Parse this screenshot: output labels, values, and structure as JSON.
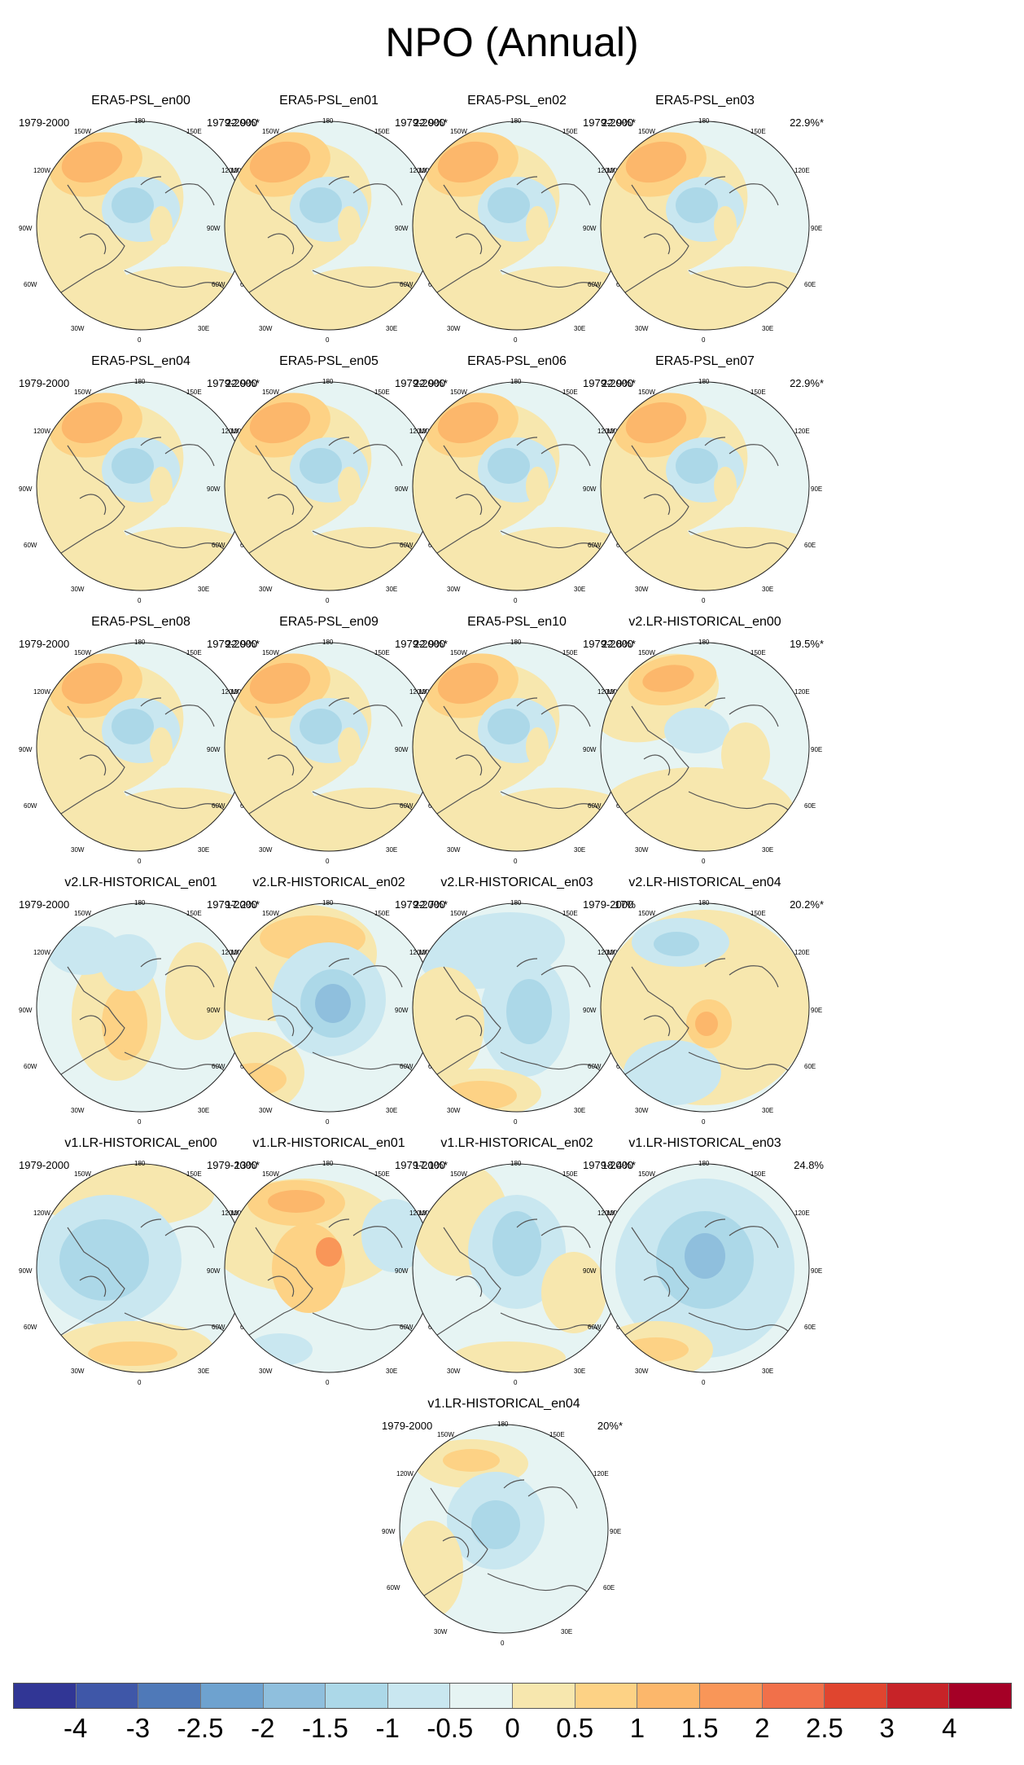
{
  "title": "NPO (Annual)",
  "panels": [
    {
      "name": "ERA5-PSL_en00",
      "period": "1979-2000",
      "pct": "22.9%*",
      "pattern": "era5"
    },
    {
      "name": "ERA5-PSL_en01",
      "period": "1979-2000",
      "pct": "22.9%*",
      "pattern": "era5"
    },
    {
      "name": "ERA5-PSL_en02",
      "period": "1979-2000",
      "pct": "22.9%*",
      "pattern": "era5"
    },
    {
      "name": "ERA5-PSL_en03",
      "period": "1979-2000",
      "pct": "22.9%*",
      "pattern": "era5"
    },
    {
      "name": "ERA5-PSL_en04",
      "period": "1979-2000",
      "pct": "22.9%*",
      "pattern": "era5"
    },
    {
      "name": "ERA5-PSL_en05",
      "period": "1979-2000",
      "pct": "22.9%*",
      "pattern": "era5"
    },
    {
      "name": "ERA5-PSL_en06",
      "period": "1979-2000",
      "pct": "22.9%*",
      "pattern": "era5"
    },
    {
      "name": "ERA5-PSL_en07",
      "period": "1979-2000",
      "pct": "22.9%*",
      "pattern": "era5"
    },
    {
      "name": "ERA5-PSL_en08",
      "period": "1979-2000",
      "pct": "22.9%*",
      "pattern": "era5"
    },
    {
      "name": "ERA5-PSL_en09",
      "period": "1979-2000",
      "pct": "22.9%*",
      "pattern": "era5"
    },
    {
      "name": "ERA5-PSL_en10",
      "period": "1979-2000",
      "pct": "22.8%*",
      "pattern": "era5"
    },
    {
      "name": "v2.LR-HISTORICAL_en00",
      "period": "1979-2000",
      "pct": "19.5%*",
      "pattern": "v2a"
    },
    {
      "name": "v2.LR-HISTORICAL_en01",
      "period": "1979-2000",
      "pct": "17.2%*",
      "pattern": "v2b"
    },
    {
      "name": "v2.LR-HISTORICAL_en02",
      "period": "1979-2000",
      "pct": "22.7%*",
      "pattern": "v2c"
    },
    {
      "name": "v2.LR-HISTORICAL_en03",
      "period": "1979-2000",
      "pct": "17%",
      "pattern": "v2d"
    },
    {
      "name": "v2.LR-HISTORICAL_en04",
      "period": "1979-2000",
      "pct": "20.2%*",
      "pattern": "v2e"
    },
    {
      "name": "v1.LR-HISTORICAL_en00",
      "period": "1979-2000",
      "pct": "13%*",
      "pattern": "v1a"
    },
    {
      "name": "v1.LR-HISTORICAL_en01",
      "period": "1979-2000",
      "pct": "17.1%*",
      "pattern": "v1b"
    },
    {
      "name": "v1.LR-HISTORICAL_en02",
      "period": "1979-2000",
      "pct": "18.4%*",
      "pattern": "v1c"
    },
    {
      "name": "v1.LR-HISTORICAL_en03",
      "period": "1979-2000",
      "pct": "24.8%",
      "pattern": "v1d"
    },
    {
      "name": "v1.LR-HISTORICAL_en04",
      "period": "1979-2000",
      "pct": "20%*",
      "pattern": "v1e"
    }
  ],
  "longitude_labels": {
    "lon_180": "180",
    "lon_150w": "150W",
    "lon_150e": "150E",
    "lon_120w": "120W",
    "lon_120e": "120E",
    "lon_90w": "90W",
    "lon_90e": "90E",
    "lon_60w": "60W",
    "lon_60e": "60E",
    "lon_30w": "30W",
    "lon_30e": "30E",
    "lon_0": "0"
  },
  "colorbar": {
    "colors": [
      "#313695",
      "#3f57a8",
      "#4f79b8",
      "#6ea2cf",
      "#8fbfdd",
      "#acd8e8",
      "#c9e7f0",
      "#e6f4f3",
      "#f7e7ae",
      "#fdd285",
      "#fcb76b",
      "#f99658",
      "#f1704a",
      "#e0452f",
      "#c72328",
      "#a50026"
    ],
    "labels": [
      "-4",
      "-3",
      "-2.5",
      "-2",
      "-1.5",
      "-1",
      "-0.5",
      "0",
      "0.5",
      "1",
      "1.5",
      "2",
      "2.5",
      "3",
      "4"
    ]
  }
}
